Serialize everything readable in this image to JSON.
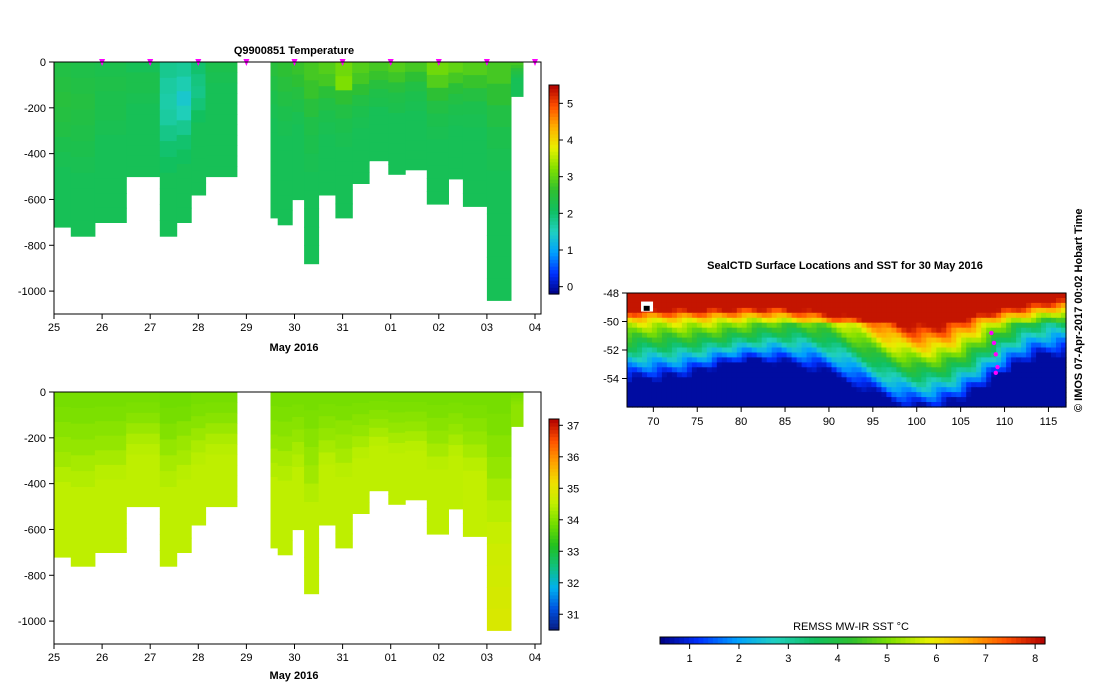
{
  "colors": {
    "temp_scale": [
      "#000080",
      "#0030ff",
      "#00a0ff",
      "#20d0c0",
      "#10c060",
      "#30c030",
      "#80e000",
      "#e8f000",
      "#ffb000",
      "#ff5000",
      "#b00000"
    ],
    "sal_scale": [
      "#081a80",
      "#0050e0",
      "#00b0f0",
      "#10c080",
      "#20c020",
      "#70dd00",
      "#c0f000",
      "#f0e000",
      "#ffa000",
      "#ff5000",
      "#b00000"
    ],
    "marker": "#ff00ff"
  },
  "labels": {
    "top_title": "Q9900851  Temperature",
    "x_axis_top": "May 2016",
    "x_axis_bottom": "May 2016",
    "map_title": "SealCTD Surface Locations and SST for 30 May 2016",
    "sst_colorbar_label": "REMSS MW-IR SST °C",
    "credit": "© IMOS 07-Apr-2017 00:02 Hobart Time"
  },
  "chart_data": [
    {
      "type": "heatmap",
      "title": "Q9900851  Temperature",
      "xlabel": "May 2016",
      "ylabel": "",
      "x_ticks": [
        "25",
        "26",
        "27",
        "28",
        "29",
        "30",
        "31",
        "01",
        "02",
        "03",
        "04"
      ],
      "y_ticks": [
        "0",
        "-200",
        "-400",
        "-600",
        "-800",
        "-1000"
      ],
      "ylim": [
        -1100,
        0
      ],
      "colorbar_ticks": [
        "0",
        "1",
        "2",
        "3",
        "4",
        "5"
      ],
      "colorbar_range": [
        -0.2,
        5.5
      ],
      "profile_marker_days": [
        1,
        2,
        3,
        4,
        5,
        6,
        7,
        8,
        9,
        10
      ],
      "profiles": [
        {
          "start": 0.0,
          "end": 0.35,
          "max_depth": 720,
          "values": [
            2.4,
            2.45,
            2.5,
            2.45,
            2.4,
            2.3,
            2.25,
            2.2,
            2.2,
            2.2,
            2.2
          ]
        },
        {
          "start": 0.35,
          "end": 0.85,
          "max_depth": 760,
          "values": [
            2.35,
            2.4,
            2.45,
            2.4,
            2.35,
            2.3,
            2.25,
            2.2,
            2.2,
            2.2,
            2.2
          ]
        },
        {
          "start": 0.85,
          "end": 1.5,
          "max_depth": 700,
          "values": [
            2.3,
            2.35,
            2.3,
            2.3,
            2.25,
            2.2,
            2.2,
            2.2,
            2.2,
            2.2,
            2.2
          ]
        },
        {
          "start": 1.5,
          "end": 2.2,
          "max_depth": 500,
          "values": [
            2.2,
            2.3,
            2.3,
            2.25,
            2.2,
            2.2,
            2.2,
            2.2,
            2.2,
            2.2,
            2.2
          ]
        },
        {
          "start": 2.2,
          "end": 2.55,
          "max_depth": 760,
          "values": [
            1.8,
            1.7,
            1.65,
            1.7,
            1.85,
            2.0,
            2.1,
            2.2,
            2.2,
            2.2,
            2.2
          ]
        },
        {
          "start": 2.55,
          "end": 2.85,
          "max_depth": 700,
          "values": [
            1.75,
            1.6,
            1.4,
            1.55,
            1.8,
            2.0,
            2.1,
            2.2,
            2.2,
            2.2,
            2.2
          ]
        },
        {
          "start": 2.85,
          "end": 3.15,
          "max_depth": 580,
          "values": [
            2.0,
            1.9,
            1.85,
            1.95,
            2.1,
            2.2,
            2.2,
            2.2,
            2.2,
            2.2,
            2.2
          ]
        },
        {
          "start": 3.15,
          "end": 3.8,
          "max_depth": 500,
          "values": [
            2.3,
            2.25,
            2.2,
            2.2,
            2.2,
            2.2,
            2.2,
            2.2,
            2.2,
            2.2,
            2.2
          ]
        },
        {
          "start": 4.5,
          "end": 4.65,
          "max_depth": 680,
          "values": [
            2.5,
            2.4,
            2.3,
            2.25,
            2.2,
            2.2,
            2.2,
            2.2,
            2.2,
            2.2,
            2.2
          ]
        },
        {
          "start": 4.65,
          "end": 4.95,
          "max_depth": 710,
          "values": [
            2.6,
            2.5,
            2.4,
            2.3,
            2.25,
            2.2,
            2.2,
            2.2,
            2.2,
            2.2,
            2.2
          ]
        },
        {
          "start": 4.95,
          "end": 5.2,
          "max_depth": 600,
          "values": [
            2.7,
            2.6,
            2.45,
            2.35,
            2.25,
            2.2,
            2.2,
            2.2,
            2.2,
            2.2,
            2.2
          ]
        },
        {
          "start": 5.2,
          "end": 5.5,
          "max_depth": 880,
          "values": [
            2.8,
            2.7,
            2.5,
            2.35,
            2.3,
            2.25,
            2.2,
            2.2,
            2.2,
            2.2,
            2.2
          ]
        },
        {
          "start": 5.5,
          "end": 5.85,
          "max_depth": 580,
          "values": [
            2.9,
            2.8,
            2.55,
            2.4,
            2.3,
            2.25,
            2.2,
            2.2,
            2.2,
            2.2,
            2.2
          ]
        },
        {
          "start": 5.85,
          "end": 6.2,
          "max_depth": 680,
          "values": [
            3.1,
            3.2,
            2.6,
            2.4,
            2.3,
            2.25,
            2.2,
            2.2,
            2.2,
            2.2,
            2.2
          ]
        },
        {
          "start": 6.2,
          "end": 6.55,
          "max_depth": 530,
          "values": [
            2.9,
            2.8,
            2.6,
            2.4,
            2.3,
            2.25,
            2.2,
            2.2,
            2.2,
            2.2,
            2.2
          ]
        },
        {
          "start": 6.55,
          "end": 6.95,
          "max_depth": 430,
          "values": [
            2.8,
            2.7,
            2.5,
            2.35,
            2.3,
            2.2,
            2.2,
            2.2,
            2.2,
            2.2,
            2.2
          ]
        },
        {
          "start": 6.95,
          "end": 7.3,
          "max_depth": 490,
          "values": [
            2.9,
            2.75,
            2.5,
            2.35,
            2.3,
            2.2,
            2.2,
            2.2,
            2.2,
            2.2,
            2.2
          ]
        },
        {
          "start": 7.3,
          "end": 7.75,
          "max_depth": 470,
          "values": [
            2.8,
            2.6,
            2.4,
            2.3,
            2.25,
            2.2,
            2.2,
            2.2,
            2.2,
            2.2,
            2.2
          ]
        },
        {
          "start": 7.75,
          "end": 8.2,
          "max_depth": 620,
          "values": [
            3.1,
            2.9,
            2.6,
            2.4,
            2.3,
            2.25,
            2.2,
            2.2,
            2.2,
            2.2,
            2.2
          ]
        },
        {
          "start": 8.2,
          "end": 8.5,
          "max_depth": 510,
          "values": [
            3.0,
            2.8,
            2.55,
            2.4,
            2.3,
            2.25,
            2.2,
            2.2,
            2.2,
            2.2,
            2.2
          ]
        },
        {
          "start": 8.5,
          "end": 9.0,
          "max_depth": 630,
          "values": [
            2.9,
            2.7,
            2.45,
            2.3,
            2.25,
            2.2,
            2.2,
            2.2,
            2.2,
            2.2,
            2.2
          ]
        },
        {
          "start": 9.0,
          "end": 9.5,
          "max_depth": 1040,
          "values": [
            2.8,
            2.6,
            2.4,
            2.3,
            2.25,
            2.2,
            2.2,
            2.2,
            2.2,
            2.2,
            2.2
          ]
        },
        {
          "start": 9.5,
          "end": 9.75,
          "max_depth": 150,
          "values": [
            2.8,
            2.7,
            2.5,
            2.4,
            2.3,
            2.2,
            2.2,
            2.2,
            2.2,
            2.2,
            2.2
          ]
        }
      ]
    },
    {
      "type": "heatmap",
      "title": "",
      "xlabel": "May 2016",
      "ylabel": "",
      "x_ticks": [
        "25",
        "26",
        "27",
        "28",
        "29",
        "30",
        "31",
        "01",
        "02",
        "03",
        "04"
      ],
      "y_ticks": [
        "0",
        "-200",
        "-400",
        "-600",
        "-800",
        "-1000"
      ],
      "ylim": [
        -1100,
        0
      ],
      "colorbar_ticks": [
        "31",
        "32",
        "33",
        "34",
        "35",
        "36",
        "37"
      ],
      "colorbar_range": [
        30.5,
        37.2
      ],
      "profiles": [
        {
          "start": 0.0,
          "end": 0.35,
          "max_depth": 720,
          "values": [
            33.9,
            33.95,
            34.05,
            34.15,
            34.25,
            34.4,
            34.5,
            34.5,
            34.5,
            34.5,
            34.5
          ]
        },
        {
          "start": 0.35,
          "end": 0.85,
          "max_depth": 760,
          "values": [
            33.9,
            33.95,
            34.05,
            34.15,
            34.3,
            34.4,
            34.5,
            34.5,
            34.5,
            34.5,
            34.5
          ]
        },
        {
          "start": 0.85,
          "end": 1.5,
          "max_depth": 700,
          "values": [
            33.9,
            33.95,
            34.05,
            34.15,
            34.3,
            34.45,
            34.5,
            34.5,
            34.5,
            34.5,
            34.5
          ]
        },
        {
          "start": 1.5,
          "end": 2.2,
          "max_depth": 500,
          "values": [
            33.9,
            33.95,
            34.05,
            34.2,
            34.35,
            34.45,
            34.5,
            34.5,
            34.5,
            34.5,
            34.5
          ]
        },
        {
          "start": 2.2,
          "end": 2.55,
          "max_depth": 760,
          "values": [
            33.85,
            33.9,
            34.0,
            34.15,
            34.3,
            34.4,
            34.5,
            34.5,
            34.5,
            34.5,
            34.5
          ]
        },
        {
          "start": 2.55,
          "end": 2.85,
          "max_depth": 700,
          "values": [
            33.85,
            33.9,
            34.05,
            34.2,
            34.3,
            34.45,
            34.5,
            34.5,
            34.5,
            34.5,
            34.5
          ]
        },
        {
          "start": 2.85,
          "end": 3.15,
          "max_depth": 580,
          "values": [
            33.9,
            33.95,
            34.05,
            34.2,
            34.35,
            34.45,
            34.5,
            34.5,
            34.5,
            34.5,
            34.5
          ]
        },
        {
          "start": 3.15,
          "end": 3.8,
          "max_depth": 500,
          "values": [
            33.9,
            33.95,
            34.05,
            34.2,
            34.35,
            34.45,
            34.5,
            34.5,
            34.5,
            34.5,
            34.5
          ]
        },
        {
          "start": 4.5,
          "end": 4.65,
          "max_depth": 680,
          "values": [
            33.9,
            33.95,
            34.05,
            34.15,
            34.3,
            34.4,
            34.5,
            34.5,
            34.5,
            34.5,
            34.5
          ]
        },
        {
          "start": 4.65,
          "end": 4.95,
          "max_depth": 710,
          "values": [
            33.9,
            33.95,
            34.05,
            34.15,
            34.3,
            34.4,
            34.5,
            34.5,
            34.5,
            34.5,
            34.5
          ]
        },
        {
          "start": 4.95,
          "end": 5.2,
          "max_depth": 600,
          "values": [
            33.9,
            33.95,
            34.05,
            34.15,
            34.3,
            34.4,
            34.5,
            34.5,
            34.5,
            34.5,
            34.5
          ]
        },
        {
          "start": 5.2,
          "end": 5.5,
          "max_depth": 880,
          "values": [
            33.9,
            33.95,
            34.05,
            34.15,
            34.25,
            34.4,
            34.5,
            34.5,
            34.5,
            34.5,
            34.5
          ]
        },
        {
          "start": 5.5,
          "end": 5.85,
          "max_depth": 580,
          "values": [
            33.9,
            33.95,
            34.05,
            34.15,
            34.3,
            34.45,
            34.5,
            34.5,
            34.5,
            34.5,
            34.5
          ]
        },
        {
          "start": 5.85,
          "end": 6.2,
          "max_depth": 680,
          "values": [
            33.9,
            33.95,
            34.1,
            34.2,
            34.3,
            34.45,
            34.5,
            34.5,
            34.5,
            34.5,
            34.5
          ]
        },
        {
          "start": 6.2,
          "end": 6.55,
          "max_depth": 530,
          "values": [
            33.9,
            33.95,
            34.05,
            34.15,
            34.3,
            34.45,
            34.5,
            34.5,
            34.5,
            34.5,
            34.5
          ]
        },
        {
          "start": 6.55,
          "end": 6.95,
          "max_depth": 430,
          "values": [
            33.9,
            33.95,
            34.05,
            34.15,
            34.3,
            34.45,
            34.5,
            34.5,
            34.5,
            34.5,
            34.5
          ]
        },
        {
          "start": 6.95,
          "end": 7.3,
          "max_depth": 490,
          "values": [
            33.9,
            33.95,
            34.05,
            34.15,
            34.3,
            34.45,
            34.5,
            34.5,
            34.5,
            34.5,
            34.5
          ]
        },
        {
          "start": 7.3,
          "end": 7.75,
          "max_depth": 470,
          "values": [
            33.9,
            33.95,
            34.05,
            34.15,
            34.3,
            34.45,
            34.5,
            34.5,
            34.5,
            34.5,
            34.5
          ]
        },
        {
          "start": 7.75,
          "end": 8.2,
          "max_depth": 620,
          "values": [
            33.9,
            33.95,
            34.05,
            34.15,
            34.3,
            34.45,
            34.5,
            34.5,
            34.5,
            34.5,
            34.5
          ]
        },
        {
          "start": 8.2,
          "end": 8.5,
          "max_depth": 510,
          "values": [
            33.9,
            33.95,
            34.05,
            34.15,
            34.3,
            34.45,
            34.5,
            34.5,
            34.5,
            34.5,
            34.5
          ]
        },
        {
          "start": 8.5,
          "end": 9.0,
          "max_depth": 630,
          "values": [
            33.9,
            33.95,
            34.05,
            34.15,
            34.3,
            34.45,
            34.55,
            34.55,
            34.55,
            34.55,
            34.55
          ]
        },
        {
          "start": 9.0,
          "end": 9.5,
          "max_depth": 1040,
          "values": [
            33.9,
            33.95,
            34.05,
            34.15,
            34.3,
            34.45,
            34.6,
            34.7,
            34.75,
            34.8,
            34.85
          ]
        },
        {
          "start": 9.5,
          "end": 9.75,
          "max_depth": 150,
          "values": [
            33.9,
            33.95,
            34.0,
            34.05,
            34.1,
            34.1,
            34.1,
            34.1,
            34.1,
            34.1,
            34.1
          ]
        }
      ]
    },
    {
      "type": "heatmap",
      "title": "SealCTD Surface Locations and SST for 30 May 2016",
      "xlabel": "",
      "ylabel": "",
      "x_ticks": [
        "70",
        "75",
        "80",
        "85",
        "90",
        "95",
        "100",
        "105",
        "110",
        "115"
      ],
      "y_ticks": [
        "-48",
        "-50",
        "-52",
        "-54"
      ],
      "xlim": [
        67,
        117
      ],
      "ylim": [
        -56,
        -48
      ],
      "colorbar_label": "REMSS MW-IR SST °C",
      "colorbar_ticks": [
        "1",
        "2",
        "3",
        "4",
        "5",
        "6",
        "7",
        "8"
      ],
      "colorbar_range": [
        0.4,
        8.2
      ],
      "seal_track": [
        [
          108.5,
          -50.8
        ],
        [
          108.8,
          -51.5
        ],
        [
          109.0,
          -52.3
        ],
        [
          109.2,
          -53.2
        ],
        [
          109.0,
          -53.6
        ]
      ]
    }
  ]
}
